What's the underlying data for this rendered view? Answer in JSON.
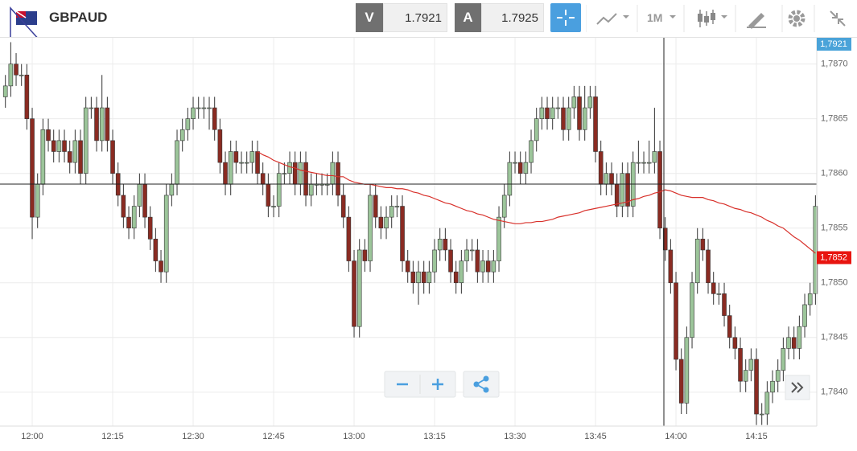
{
  "toolbar": {
    "symbol": "GBPAUD",
    "bid_label": "V",
    "bid": "1.7921",
    "ask_label": "A",
    "ask": "1.7925",
    "timeframe": "1M"
  },
  "chart_data": {
    "type": "candlestick",
    "categories": [
      null,
      null,
      null,
      null,
      null,
      "12:00",
      null,
      null,
      null,
      null,
      null,
      null,
      null,
      null,
      null,
      null,
      null,
      null,
      null,
      null,
      "12:15",
      null,
      null,
      null,
      null,
      null,
      null,
      null,
      null,
      null,
      null,
      null,
      null,
      null,
      null,
      "12:30",
      null,
      null,
      null,
      null,
      null,
      null,
      null,
      null,
      null,
      null,
      null,
      null,
      null,
      null,
      "12:45",
      null,
      null,
      null,
      null,
      null,
      null,
      null,
      null,
      null,
      null,
      null,
      null,
      null,
      null,
      "13:00",
      null,
      null,
      null,
      null,
      null,
      null,
      null,
      null,
      null,
      null,
      null,
      null,
      null,
      null,
      "13:15",
      null,
      null,
      null,
      null,
      null,
      null,
      null,
      null,
      null,
      null,
      null,
      null,
      null,
      null,
      "13:30",
      null,
      null,
      null,
      null,
      null,
      null,
      null,
      null,
      null,
      null,
      null,
      null,
      null,
      null,
      "13:45",
      null,
      null,
      null,
      null,
      null,
      null,
      null,
      null,
      null,
      null,
      null,
      null,
      null,
      null,
      "14:00",
      null,
      null,
      null,
      null,
      null,
      null,
      null,
      null,
      null,
      null,
      null,
      null,
      null,
      null,
      "14:15",
      null,
      null,
      null,
      null,
      null,
      null,
      null,
      null,
      null,
      null,
      null
    ],
    "ohlc": [
      [
        1.7867,
        1.7869,
        1.7866,
        1.7868
      ],
      [
        1.7868,
        1.7872,
        1.7867,
        1.787
      ],
      [
        1.787,
        1.7871,
        1.7868,
        1.7869
      ],
      [
        1.7869,
        1.787,
        1.7868,
        1.7869
      ],
      [
        1.7869,
        1.787,
        1.7864,
        1.7865
      ],
      [
        1.7865,
        1.7866,
        1.7854,
        1.7856
      ],
      [
        1.7856,
        1.786,
        1.7855,
        1.7859
      ],
      [
        1.7859,
        1.7865,
        1.7858,
        1.7864
      ],
      [
        1.7864,
        1.7865,
        1.7862,
        1.7863
      ],
      [
        1.7863,
        1.7864,
        1.7861,
        1.7862
      ],
      [
        1.7862,
        1.7864,
        1.7861,
        1.7863
      ],
      [
        1.7863,
        1.7864,
        1.7861,
        1.7862
      ],
      [
        1.7862,
        1.7863,
        1.786,
        1.7861
      ],
      [
        1.7861,
        1.7864,
        1.786,
        1.7863
      ],
      [
        1.7863,
        1.7864,
        1.7859,
        1.786
      ],
      [
        1.786,
        1.7867,
        1.7859,
        1.7866
      ],
      [
        1.7866,
        1.7867,
        1.7865,
        1.7866
      ],
      [
        1.7866,
        1.7867,
        1.7862,
        1.7863
      ],
      [
        1.7863,
        1.7869,
        1.7862,
        1.7866
      ],
      [
        1.7866,
        1.7867,
        1.7862,
        1.7863
      ],
      [
        1.7863,
        1.7864,
        1.7859,
        1.786
      ],
      [
        1.786,
        1.7861,
        1.7857,
        1.7858
      ],
      [
        1.7858,
        1.7859,
        1.7855,
        1.7856
      ],
      [
        1.7856,
        1.7857,
        1.7854,
        1.7855
      ],
      [
        1.7855,
        1.7858,
        1.7854,
        1.7857
      ],
      [
        1.7857,
        1.786,
        1.7856,
        1.7859
      ],
      [
        1.7859,
        1.786,
        1.7855,
        1.7856
      ],
      [
        1.7856,
        1.7857,
        1.7853,
        1.7854
      ],
      [
        1.7854,
        1.7855,
        1.7851,
        1.7852
      ],
      [
        1.7852,
        1.7853,
        1.785,
        1.7851
      ],
      [
        1.7851,
        1.7859,
        1.785,
        1.7858
      ],
      [
        1.7858,
        1.786,
        1.7857,
        1.7859
      ],
      [
        1.7859,
        1.7864,
        1.7858,
        1.7863
      ],
      [
        1.7863,
        1.7865,
        1.7862,
        1.7864
      ],
      [
        1.7864,
        1.7866,
        1.7863,
        1.7865
      ],
      [
        1.7865,
        1.7867,
        1.7864,
        1.7866
      ],
      [
        1.7866,
        1.7867,
        1.7865,
        1.7866
      ],
      [
        1.7866,
        1.7867,
        1.7865,
        1.7866
      ],
      [
        1.7866,
        1.7867,
        1.7864,
        1.7866
      ],
      [
        1.7866,
        1.7867,
        1.7863,
        1.7864
      ],
      [
        1.7864,
        1.7865,
        1.786,
        1.7861
      ],
      [
        1.7861,
        1.7862,
        1.7858,
        1.7859
      ],
      [
        1.7859,
        1.7863,
        1.7858,
        1.7862
      ],
      [
        1.7862,
        1.7863,
        1.786,
        1.7861
      ],
      [
        1.7861,
        1.7862,
        1.786,
        1.7861
      ],
      [
        1.7861,
        1.7862,
        1.786,
        1.7861
      ],
      [
        1.7861,
        1.7863,
        1.786,
        1.7862
      ],
      [
        1.7862,
        1.7863,
        1.7859,
        1.786
      ],
      [
        1.786,
        1.7861,
        1.7858,
        1.7859
      ],
      [
        1.7859,
        1.786,
        1.7856,
        1.7857
      ],
      [
        1.7857,
        1.7858,
        1.7856,
        1.7857
      ],
      [
        1.7857,
        1.7861,
        1.7856,
        1.786
      ],
      [
        1.786,
        1.7861,
        1.7859,
        1.786
      ],
      [
        1.786,
        1.7862,
        1.7859,
        1.7861
      ],
      [
        1.7861,
        1.7862,
        1.7858,
        1.7859
      ],
      [
        1.7859,
        1.7862,
        1.7858,
        1.7861
      ],
      [
        1.7861,
        1.7862,
        1.7857,
        1.7858
      ],
      [
        1.7858,
        1.786,
        1.7857,
        1.7859
      ],
      [
        1.7859,
        1.786,
        1.7858,
        1.7859
      ],
      [
        1.7859,
        1.786,
        1.7858,
        1.7859
      ],
      [
        1.7859,
        1.786,
        1.7858,
        1.7859
      ],
      [
        1.7859,
        1.7862,
        1.7858,
        1.7861
      ],
      [
        1.7861,
        1.7862,
        1.7857,
        1.7858
      ],
      [
        1.7858,
        1.7859,
        1.7855,
        1.7856
      ],
      [
        1.7856,
        1.7857,
        1.7851,
        1.7852
      ],
      [
        1.7852,
        1.7853,
        1.7845,
        1.7846
      ],
      [
        1.7846,
        1.7854,
        1.7845,
        1.7853
      ],
      [
        1.7853,
        1.7854,
        1.7851,
        1.7852
      ],
      [
        1.7852,
        1.7859,
        1.7851,
        1.7858
      ],
      [
        1.7858,
        1.7859,
        1.7855,
        1.7856
      ],
      [
        1.7856,
        1.7857,
        1.7854,
        1.7855
      ],
      [
        1.7855,
        1.7857,
        1.7854,
        1.7856
      ],
      [
        1.7856,
        1.7858,
        1.7855,
        1.7857
      ],
      [
        1.7857,
        1.7858,
        1.7856,
        1.7857
      ],
      [
        1.7857,
        1.7858,
        1.7851,
        1.7852
      ],
      [
        1.7852,
        1.7853,
        1.785,
        1.7851
      ],
      [
        1.7851,
        1.7852,
        1.7849,
        1.785
      ],
      [
        1.785,
        1.7852,
        1.7848,
        1.7851
      ],
      [
        1.7851,
        1.7852,
        1.7849,
        1.785
      ],
      [
        1.785,
        1.7852,
        1.7849,
        1.7851
      ],
      [
        1.7851,
        1.7854,
        1.785,
        1.7853
      ],
      [
        1.7853,
        1.7855,
        1.7852,
        1.7854
      ],
      [
        1.7854,
        1.7855,
        1.7852,
        1.7853
      ],
      [
        1.7853,
        1.7854,
        1.785,
        1.7851
      ],
      [
        1.7851,
        1.7852,
        1.7849,
        1.785
      ],
      [
        1.785,
        1.7853,
        1.7849,
        1.7852
      ],
      [
        1.7852,
        1.7854,
        1.7851,
        1.7853
      ],
      [
        1.7853,
        1.7854,
        1.7852,
        1.7853
      ],
      [
        1.7853,
        1.7854,
        1.785,
        1.7851
      ],
      [
        1.7851,
        1.7853,
        1.785,
        1.7852
      ],
      [
        1.7852,
        1.7853,
        1.785,
        1.7851
      ],
      [
        1.7851,
        1.7853,
        1.785,
        1.7852
      ],
      [
        1.7852,
        1.7857,
        1.7851,
        1.7856
      ],
      [
        1.7856,
        1.7859,
        1.7855,
        1.7858
      ],
      [
        1.7858,
        1.7862,
        1.7857,
        1.7861
      ],
      [
        1.7861,
        1.7862,
        1.786,
        1.7861
      ],
      [
        1.7861,
        1.7862,
        1.7859,
        1.786
      ],
      [
        1.786,
        1.7862,
        1.7859,
        1.7861
      ],
      [
        1.7861,
        1.7864,
        1.786,
        1.7863
      ],
      [
        1.7863,
        1.7866,
        1.7862,
        1.7865
      ],
      [
        1.7865,
        1.7867,
        1.7864,
        1.7866
      ],
      [
        1.7866,
        1.7867,
        1.7864,
        1.7865
      ],
      [
        1.7865,
        1.7867,
        1.7864,
        1.7866
      ],
      [
        1.7866,
        1.7867,
        1.7865,
        1.7866
      ],
      [
        1.7866,
        1.7867,
        1.7863,
        1.7864
      ],
      [
        1.7864,
        1.7867,
        1.7863,
        1.7866
      ],
      [
        1.7866,
        1.7868,
        1.7865,
        1.7867
      ],
      [
        1.7867,
        1.7868,
        1.7863,
        1.7864
      ],
      [
        1.7864,
        1.7868,
        1.7863,
        1.7866
      ],
      [
        1.7866,
        1.7868,
        1.7865,
        1.7867
      ],
      [
        1.7867,
        1.7868,
        1.7861,
        1.7862
      ],
      [
        1.7862,
        1.7863,
        1.7858,
        1.7859
      ],
      [
        1.7859,
        1.7861,
        1.7858,
        1.786
      ],
      [
        1.786,
        1.7861,
        1.7858,
        1.7859
      ],
      [
        1.7859,
        1.786,
        1.7856,
        1.7857
      ],
      [
        1.7857,
        1.7861,
        1.7856,
        1.786
      ],
      [
        1.786,
        1.7861,
        1.7856,
        1.7857
      ],
      [
        1.7857,
        1.7862,
        1.7856,
        1.7861
      ],
      [
        1.7861,
        1.7863,
        1.786,
        1.7861
      ],
      [
        1.7861,
        1.7862,
        1.786,
        1.7861
      ],
      [
        1.7861,
        1.7863,
        1.786,
        1.7861
      ],
      [
        1.7861,
        1.7866,
        1.786,
        1.7862
      ],
      [
        1.7862,
        1.7863,
        1.7854,
        1.7855
      ],
      [
        1.7855,
        1.7856,
        1.7852,
        1.7853
      ],
      [
        1.7853,
        1.7854,
        1.7849,
        1.785
      ],
      [
        1.785,
        1.7851,
        1.7842,
        1.7843
      ],
      [
        1.7843,
        1.7844,
        1.7838,
        1.7839
      ],
      [
        1.7839,
        1.7846,
        1.7838,
        1.7845
      ],
      [
        1.7845,
        1.7851,
        1.7844,
        1.785
      ],
      [
        1.785,
        1.7855,
        1.7849,
        1.7854
      ],
      [
        1.7854,
        1.7855,
        1.7852,
        1.7853
      ],
      [
        1.7853,
        1.7854,
        1.7849,
        1.785
      ],
      [
        1.785,
        1.7851,
        1.7848,
        1.7849
      ],
      [
        1.7849,
        1.785,
        1.7848,
        1.7849
      ],
      [
        1.7849,
        1.785,
        1.7846,
        1.7847
      ],
      [
        1.7847,
        1.7848,
        1.7844,
        1.7845
      ],
      [
        1.7845,
        1.7846,
        1.7843,
        1.7844
      ],
      [
        1.7844,
        1.7845,
        1.784,
        1.7841
      ],
      [
        1.7841,
        1.7843,
        1.784,
        1.7842
      ],
      [
        1.7842,
        1.7844,
        1.7841,
        1.7843
      ],
      [
        1.7843,
        1.7844,
        1.7837,
        1.7838
      ],
      [
        1.7838,
        1.7839,
        1.7837,
        1.7838
      ],
      [
        1.7838,
        1.7841,
        1.7837,
        1.784
      ],
      [
        1.784,
        1.7842,
        1.7839,
        1.7841
      ],
      [
        1.7841,
        1.7843,
        1.784,
        1.7842
      ],
      [
        1.7842,
        1.7845,
        1.7841,
        1.7844
      ],
      [
        1.7844,
        1.7846,
        1.7843,
        1.7845
      ],
      [
        1.7845,
        1.7846,
        1.7843,
        1.7844
      ],
      [
        1.7844,
        1.7847,
        1.7843,
        1.7846
      ],
      [
        1.7846,
        1.7849,
        1.7845,
        1.7848
      ],
      [
        1.7848,
        1.785,
        1.7847,
        1.7849
      ],
      [
        1.7849,
        1.7858,
        1.7848,
        1.7857
      ]
    ],
    "up_color": "#9cc59a",
    "down_color": "#8a2b22",
    "moving_average": {
      "color": "#d8302a",
      "values": [
        null,
        null,
        null,
        null,
        null,
        null,
        null,
        null,
        null,
        null,
        null,
        null,
        null,
        null,
        null,
        null,
        null,
        null,
        null,
        null,
        null,
        null,
        null,
        null,
        null,
        null,
        null,
        null,
        null,
        null,
        null,
        null,
        null,
        null,
        null,
        null,
        null,
        null,
        null,
        null,
        null,
        null,
        null,
        null,
        null,
        null,
        null,
        1.7862,
        1.78617,
        1.78615,
        1.78612,
        1.7861,
        1.78608,
        1.78606,
        1.78605,
        1.78603,
        1.78602,
        1.78601,
        1.786,
        1.78599,
        1.78598,
        1.78598,
        1.78597,
        1.78597,
        1.78594,
        1.78592,
        1.78591,
        1.7859,
        1.7859,
        1.78589,
        1.78588,
        1.78587,
        1.78587,
        1.78586,
        1.78586,
        1.78585,
        1.78583,
        1.78582,
        1.7858,
        1.78579,
        1.78577,
        1.78575,
        1.78573,
        1.78572,
        1.7857,
        1.78568,
        1.78566,
        1.78565,
        1.78563,
        1.78562,
        1.7856,
        1.78558,
        1.78557,
        1.78556,
        1.78555,
        1.78554,
        1.78554,
        1.78555,
        1.78555,
        1.78556,
        1.78556,
        1.78557,
        1.78558,
        1.7856,
        1.78561,
        1.78562,
        1.78563,
        1.78564,
        1.78566,
        1.78567,
        1.78568,
        1.78569,
        1.7857,
        1.78571,
        1.78572,
        1.78573,
        1.78574,
        1.78576,
        1.78577,
        1.78579,
        1.7858,
        1.78582,
        1.78583,
        1.78585,
        1.78584,
        1.78582,
        1.7858,
        1.78579,
        1.78578,
        1.78578,
        1.78578,
        1.78576,
        1.78575,
        1.78573,
        1.78572,
        1.7857,
        1.78568,
        1.78567,
        1.78565,
        1.78564,
        1.78562,
        1.7856,
        1.78557,
        1.78555,
        1.78552,
        1.7855,
        1.78546,
        1.78542,
        1.78539,
        1.78535,
        1.78531,
        1.78527
      ]
    },
    "ylim": [
      1.78369,
      1.78724
    ],
    "yticks": [
      {
        "value": 1.784,
        "label": "1,7840"
      },
      {
        "value": 1.7845,
        "label": "1,7845"
      },
      {
        "value": 1.785,
        "label": "1,7850"
      },
      {
        "value": 1.7855,
        "label": "1,7855"
      },
      {
        "value": 1.786,
        "label": "1,7860"
      },
      {
        "value": 1.7865,
        "label": "1,7865"
      },
      {
        "value": 1.787,
        "label": "1,7870"
      }
    ],
    "grid": true,
    "top_price_label": "1,7921",
    "current_marker": {
      "value": 1.78523,
      "label": "1,7852"
    }
  }
}
